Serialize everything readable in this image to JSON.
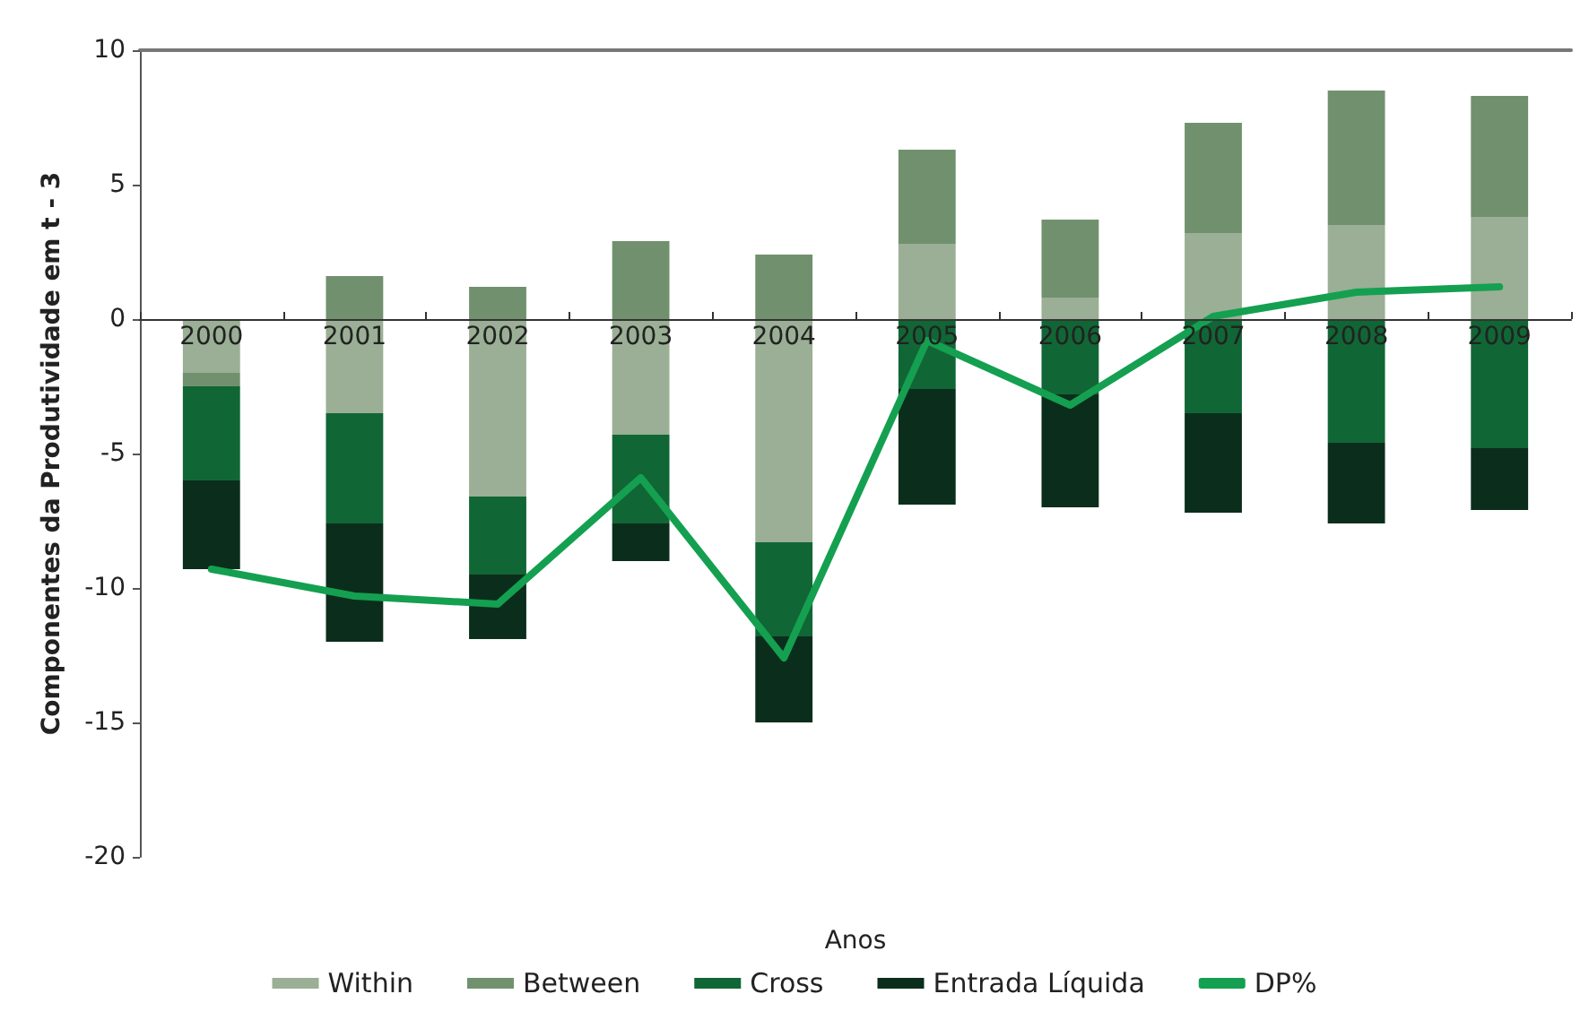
{
  "chart_data": {
    "type": "bar",
    "stacked": true,
    "xlabel": "Anos",
    "ylabel": "Componentes da Produtividade em t - 3",
    "categories": [
      "2000",
      "2001",
      "2002",
      "2003",
      "2004",
      "2005",
      "2006",
      "2007",
      "2008",
      "2009"
    ],
    "series": [
      {
        "name": "Within",
        "color": "#9aaf95",
        "values": [
          -2.0,
          -3.5,
          -6.6,
          -4.3,
          -8.3,
          2.8,
          0.8,
          3.2,
          3.5,
          3.8
        ]
      },
      {
        "name": "Between",
        "color": "#71916e",
        "values": [
          -0.5,
          1.6,
          1.2,
          2.9,
          2.4,
          3.5,
          2.9,
          4.1,
          5.0,
          4.5
        ]
      },
      {
        "name": "Cross",
        "color": "#116635",
        "values": [
          -3.5,
          -4.1,
          -2.9,
          -3.3,
          -3.5,
          -2.6,
          -2.8,
          -3.5,
          -4.6,
          -4.8
        ]
      },
      {
        "name": "Entrada Líquida",
        "color": "#0b2e1c",
        "values": [
          -3.3,
          -4.4,
          -2.4,
          -1.4,
          -3.2,
          -4.3,
          -4.2,
          -3.7,
          -3.0,
          -2.3
        ]
      },
      {
        "name": "DP%",
        "type": "line",
        "color": "#14a050",
        "values": [
          -9.3,
          -10.3,
          -10.6,
          -5.9,
          -12.6,
          -0.8,
          -3.2,
          0.1,
          1.0,
          1.2
        ]
      }
    ],
    "ylim": [
      -20,
      10
    ],
    "yticks": [
      -20,
      -15,
      -10,
      -5,
      0,
      5,
      10
    ],
    "grid": false,
    "legend": "bottom",
    "marker": "none",
    "line_style": "solid"
  }
}
